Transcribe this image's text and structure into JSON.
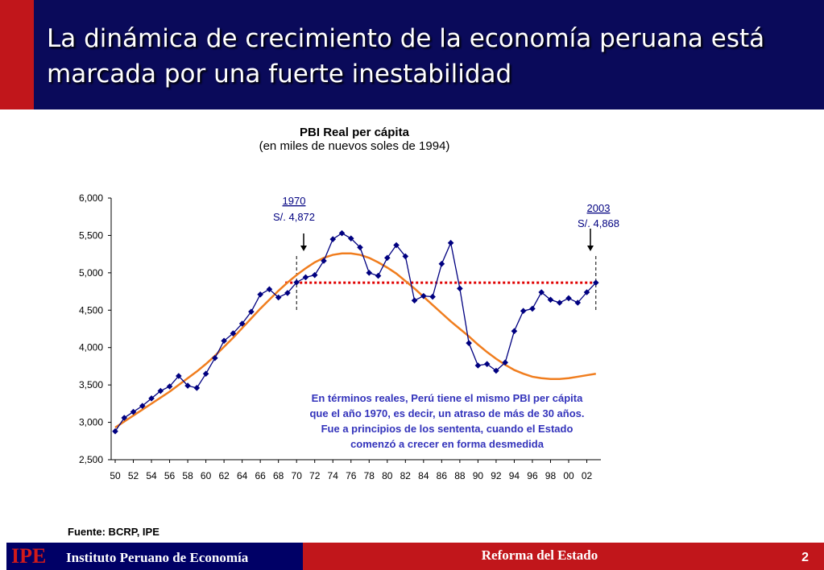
{
  "slide": {
    "title": "La dinámica de crecimiento de la economía peruana está marcada por una fuerte inestabilidad",
    "source": "Fuente: BCRP, IPE",
    "footer_org_logo": "IPE",
    "footer_org_name": "Instituto Peruano de Economía",
    "footer_center": "Reforma del Estado",
    "page_number": "2",
    "colors": {
      "header": "#0a0a5a",
      "accent_red": "#c1161b",
      "series": "#000080",
      "trend": "#f07d1e",
      "reference_line": "#e00000"
    }
  },
  "chart_data": {
    "type": "line",
    "title": "PBI Real per cápita",
    "subtitle": "(en miles de nuevos soles de 1994)",
    "ylim": [
      2500,
      6000
    ],
    "yticks": [
      "2,500",
      "3,000",
      "3,500",
      "4,000",
      "4,500",
      "5,000",
      "5,500",
      "6,000"
    ],
    "ytick_values": [
      2500,
      3000,
      3500,
      4000,
      4500,
      5000,
      5500,
      6000
    ],
    "x_tick_labels": [
      "50",
      "52",
      "54",
      "56",
      "58",
      "60",
      "62",
      "64",
      "66",
      "68",
      "70",
      "72",
      "74",
      "76",
      "78",
      "80",
      "82",
      "84",
      "86",
      "88",
      "90",
      "92",
      "94",
      "96",
      "98",
      "00",
      "02"
    ],
    "years": [
      1950,
      1951,
      1952,
      1953,
      1954,
      1955,
      1956,
      1957,
      1958,
      1959,
      1960,
      1961,
      1962,
      1963,
      1964,
      1965,
      1966,
      1967,
      1968,
      1969,
      1970,
      1971,
      1972,
      1973,
      1974,
      1975,
      1976,
      1977,
      1978,
      1979,
      1980,
      1981,
      1982,
      1983,
      1984,
      1985,
      1986,
      1987,
      1988,
      1989,
      1990,
      1991,
      1992,
      1993,
      1994,
      1995,
      1996,
      1997,
      1998,
      1999,
      2000,
      2001,
      2002,
      2003
    ],
    "series": [
      {
        "values": [
          2880,
          3060,
          3140,
          3220,
          3320,
          3420,
          3480,
          3620,
          3490,
          3460,
          3650,
          3860,
          4090,
          4190,
          4320,
          4480,
          4710,
          4780,
          4670,
          4730,
          4872,
          4940,
          4970,
          5160,
          5450,
          5530,
          5460,
          5340,
          5000,
          4960,
          5200,
          5370,
          5220,
          4630,
          4690,
          4680,
          5120,
          5400,
          4790,
          4060,
          3760,
          3780,
          3690,
          3800,
          4220,
          4490,
          4520,
          4740,
          4640,
          4600,
          4660,
          4600,
          4740,
          4868
        ]
      },
      {
        "values": [
          2930,
          3010,
          3090,
          3170,
          3250,
          3330,
          3410,
          3500,
          3590,
          3680,
          3780,
          3890,
          4010,
          4130,
          4260,
          4390,
          4520,
          4640,
          4760,
          4870,
          4970,
          5060,
          5140,
          5200,
          5240,
          5260,
          5260,
          5240,
          5200,
          5140,
          5070,
          4990,
          4890,
          4790,
          4680,
          4570,
          4460,
          4350,
          4250,
          4150,
          4040,
          3940,
          3850,
          3770,
          3700,
          3650,
          3610,
          3590,
          3580,
          3580,
          3590,
          3610,
          3630,
          3650
        ]
      }
    ],
    "reference_value": 4868,
    "annotations": [
      {
        "year_label": "1970",
        "value_label": "S/. 4,872"
      },
      {
        "year_label": "2003",
        "value_label": "S/. 4,868"
      }
    ],
    "note": "En términos reales, Perú tiene el mismo PBI per cápita que el año 1970, es decir, un atraso de más de 30 años. Fue a principios de los sententa, cuando el Estado comenzó a crecer en forma desmedida"
  }
}
